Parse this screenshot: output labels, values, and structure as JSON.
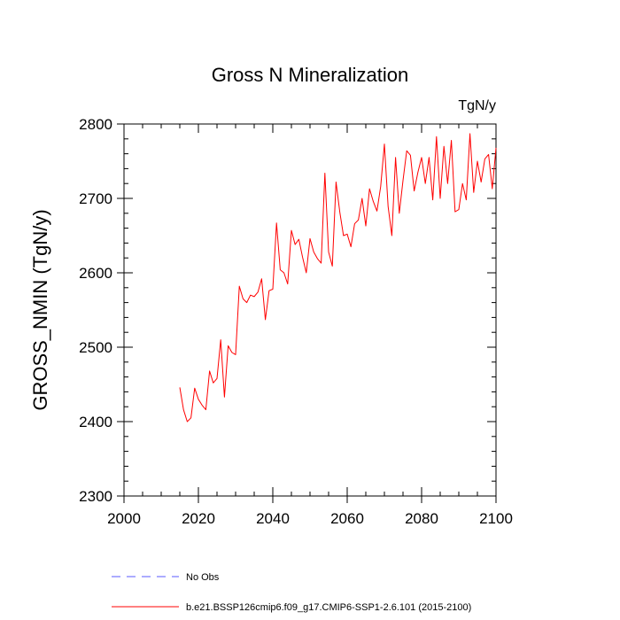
{
  "chart_data": {
    "type": "line",
    "title": "Gross N Mineralization",
    "units": "TgN/y",
    "ylabel": "GROSS_NMIN  (TgN/y)",
    "xlabel": "",
    "xlim": [
      2000,
      2100
    ],
    "ylim": [
      2300,
      2800
    ],
    "x_major_ticks": [
      2000,
      2020,
      2040,
      2060,
      2080,
      2100
    ],
    "x_minor_step": 5,
    "y_major_ticks": [
      2300,
      2400,
      2500,
      2600,
      2700,
      2800
    ],
    "y_minor_step": 20,
    "tick_labels_x": [
      "2000",
      "2020",
      "2040",
      "2060",
      "2080",
      "2100"
    ],
    "tick_labels_y": [
      "2300",
      "2400",
      "2500",
      "2600",
      "2700",
      "2800"
    ],
    "grid": false,
    "legend_position": "bottom",
    "legend": [
      {
        "label": "No Obs",
        "color": "#5a5aff",
        "style": "dashed"
      },
      {
        "label": "b.e21.BSSP126cmip6.f09_g17.CMIP6-SSP1-2.6.101 (2015-2100)",
        "color": "#ff0000",
        "style": "solid"
      }
    ],
    "series": [
      {
        "name": "b.e21.BSSP126cmip6.f09_g17.CMIP6-SSP1-2.6.101 (2015-2100)",
        "color": "#ff0000",
        "x": [
          2015,
          2016,
          2017,
          2018,
          2019,
          2020,
          2021,
          2022,
          2023,
          2024,
          2025,
          2026,
          2027,
          2028,
          2029,
          2030,
          2031,
          2032,
          2033,
          2034,
          2035,
          2036,
          2037,
          2038,
          2039,
          2040,
          2041,
          2042,
          2043,
          2044,
          2045,
          2046,
          2047,
          2048,
          2049,
          2050,
          2051,
          2052,
          2053,
          2054,
          2055,
          2056,
          2057,
          2058,
          2059,
          2060,
          2061,
          2062,
          2063,
          2064,
          2065,
          2066,
          2067,
          2068,
          2069,
          2070,
          2071,
          2072,
          2073,
          2074,
          2075,
          2076,
          2077,
          2078,
          2079,
          2080,
          2081,
          2082,
          2083,
          2084,
          2085,
          2086,
          2087,
          2088,
          2089,
          2090,
          2091,
          2092,
          2093,
          2094,
          2095,
          2096,
          2097,
          2098,
          2099,
          2100
        ],
        "y": [
          2446,
          2416,
          2400,
          2405,
          2445,
          2430,
          2422,
          2416,
          2468,
          2452,
          2458,
          2510,
          2433,
          2502,
          2493,
          2490,
          2582,
          2565,
          2560,
          2570,
          2568,
          2574,
          2592,
          2537,
          2576,
          2578,
          2667,
          2604,
          2600,
          2585,
          2657,
          2638,
          2645,
          2621,
          2600,
          2646,
          2628,
          2619,
          2613,
          2734,
          2628,
          2609,
          2722,
          2682,
          2650,
          2652,
          2635,
          2666,
          2671,
          2700,
          2663,
          2713,
          2696,
          2683,
          2716,
          2773,
          2689,
          2650,
          2755,
          2680,
          2724,
          2764,
          2758,
          2710,
          2735,
          2755,
          2720,
          2755,
          2698,
          2783,
          2700,
          2770,
          2720,
          2778,
          2682,
          2685,
          2720,
          2698,
          2787,
          2708,
          2750,
          2722,
          2753,
          2759,
          2713,
          2768
        ]
      }
    ]
  }
}
